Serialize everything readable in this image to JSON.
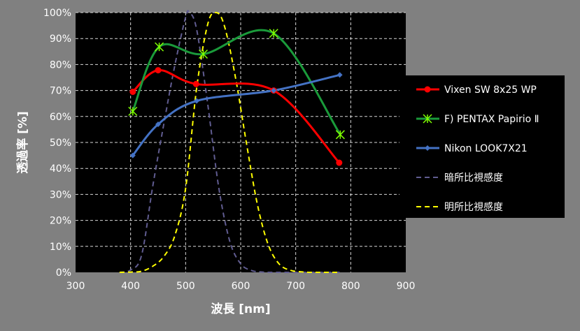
{
  "chart_data": {
    "type": "line",
    "xlabel": "波長 [nm]",
    "ylabel": "透過率 [%]",
    "xlim": [
      300,
      900
    ],
    "ylim": [
      0,
      100
    ],
    "x_ticks": [
      "300",
      "400",
      "500",
      "600",
      "700",
      "800",
      "900"
    ],
    "y_ticks": [
      "0%",
      "10%",
      "20%",
      "30%",
      "40%",
      "50%",
      "60%",
      "70%",
      "80%",
      "90%",
      "100%"
    ],
    "grid": true,
    "legend_position": "right",
    "series": [
      {
        "name": "Vixen SW 8x25 WP",
        "color": "#ff0000",
        "marker": "circle",
        "dash": "solid",
        "points": [
          [
            404,
            69.5
          ],
          [
            450,
            77.8
          ],
          [
            519,
            72.5
          ],
          [
            660,
            70.0
          ],
          [
            779,
            42.2
          ]
        ]
      },
      {
        "name": "F) PENTAX Papirio Ⅱ",
        "color": "#1a9a3a",
        "marker": "asterisk",
        "dash": "solid",
        "points": [
          [
            404,
            62.0
          ],
          [
            452,
            86.8
          ],
          [
            532,
            84.0
          ],
          [
            660,
            92.0
          ],
          [
            781,
            53.0
          ]
        ]
      },
      {
        "name": "Nikon LOOK7X21",
        "color": "#4472c4",
        "marker": "diamond",
        "dash": "solid",
        "points": [
          [
            404,
            45.0
          ],
          [
            450,
            57.0
          ],
          [
            520,
            66.0
          ],
          [
            660,
            70.0
          ],
          [
            780,
            76.0
          ]
        ]
      },
      {
        "name": "暗所比視感度",
        "color": "#605c90",
        "marker": "none",
        "dash": "dashed",
        "points": [
          [
            380,
            0.0
          ],
          [
            400,
            0.9
          ],
          [
            420,
            6.6
          ],
          [
            440,
            32.8
          ],
          [
            460,
            56.7
          ],
          [
            480,
            79.3
          ],
          [
            500,
            98.2
          ],
          [
            507,
            100.0
          ],
          [
            520,
            93.5
          ],
          [
            540,
            65.0
          ],
          [
            560,
            32.9
          ],
          [
            580,
            12.1
          ],
          [
            600,
            3.3
          ],
          [
            620,
            0.7
          ],
          [
            640,
            0.1
          ],
          [
            660,
            0.0
          ],
          [
            780,
            0.0
          ]
        ]
      },
      {
        "name": "明所比視感度",
        "color": "#ffff00",
        "marker": "none",
        "dash": "dashed",
        "points": [
          [
            380,
            0.0
          ],
          [
            400,
            0.1
          ],
          [
            420,
            0.4
          ],
          [
            440,
            2.3
          ],
          [
            460,
            6.0
          ],
          [
            480,
            13.9
          ],
          [
            500,
            32.3
          ],
          [
            520,
            71.0
          ],
          [
            540,
            95.4
          ],
          [
            555,
            100.0
          ],
          [
            570,
            95.2
          ],
          [
            590,
            75.7
          ],
          [
            610,
            50.3
          ],
          [
            630,
            26.5
          ],
          [
            650,
            10.7
          ],
          [
            670,
            3.2
          ],
          [
            690,
            0.8
          ],
          [
            710,
            0.2
          ],
          [
            730,
            0.0
          ],
          [
            780,
            0.0
          ]
        ]
      }
    ]
  }
}
